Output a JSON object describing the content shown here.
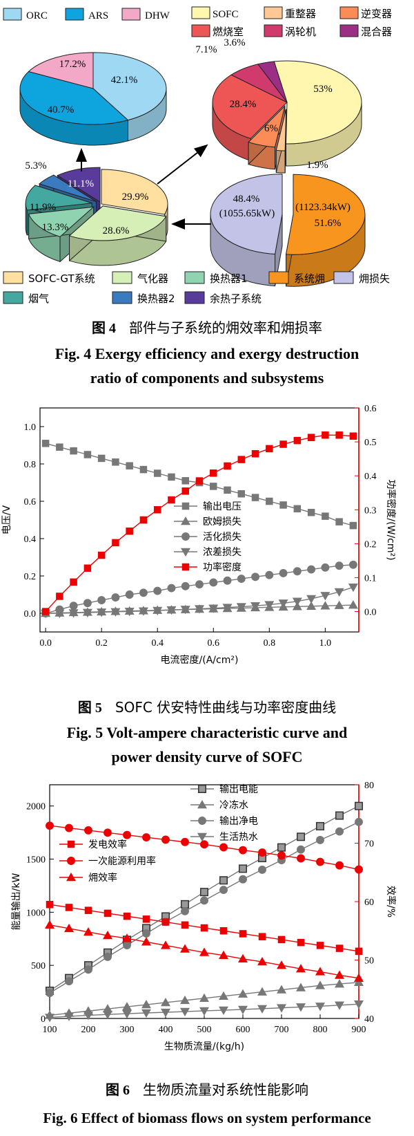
{
  "colors": {
    "ORC": "#9fd8f2",
    "ARS": "#0ea5de",
    "DHW": "#f2a8c6",
    "SOFC": "#fff6b0",
    "reformer": "#ffc895",
    "inverter": "#fb8c57",
    "combustor": "#ee5656",
    "turbine": "#d03a6c",
    "mixer": "#9b2f86",
    "sofcgt": "#ffe0a0",
    "gasifier": "#d6efb6",
    "hx1": "#8fd3b0",
    "exergy": "#f7951e",
    "loss": "#c3c3e7",
    "flue": "#44a8a0",
    "hx2": "#3a7bc0",
    "whr": "#583b9a",
    "gray": "#777777",
    "red": "#ee0000"
  },
  "fig4": {
    "legend_top_left": [
      "ORC",
      "ARS",
      "DHW"
    ],
    "legend_top_right": [
      "SOFC",
      "重整器",
      "逆变器",
      "燃烧室",
      "涡轮机",
      "混合器"
    ],
    "legend_bottom": [
      "SOFC-GT系统",
      "气化器",
      "换热器1",
      "系统㶲",
      "㶲损失",
      "烟气",
      "换热器2",
      "余热子系统"
    ],
    "pie_top_left": [
      {
        "name": "ORC",
        "label": "42.1%",
        "value": 42.1
      },
      {
        "name": "ARS",
        "label": "40.7%",
        "value": 40.7
      },
      {
        "name": "DHW",
        "label": "17.2%",
        "value": 17.2
      }
    ],
    "pie_top_right": [
      {
        "name": "SOFC",
        "label": "53%",
        "value": 53
      },
      {
        "name": "重整器",
        "label": "1.9%",
        "value": 1.9
      },
      {
        "name": "逆变器",
        "label": "6%",
        "value": 6
      },
      {
        "name": "燃烧室",
        "label": "28.4%",
        "value": 28.4
      },
      {
        "name": "涡轮机",
        "label": "7.1%",
        "value": 7.1
      },
      {
        "name": "混合器",
        "label": "3.6%",
        "value": 3.6
      }
    ],
    "pie_bottom_left": [
      {
        "name": "SOFC-GT系统",
        "label": "29.9%",
        "value": 29.9
      },
      {
        "name": "气化器",
        "label": "28.6%",
        "value": 28.6
      },
      {
        "name": "换热器1",
        "label": "13.3%",
        "value": 13.3
      },
      {
        "name": "烟气",
        "label": "11.9%",
        "value": 11.9
      },
      {
        "name": "换热器2",
        "label": "5.3%",
        "value": 5.3
      },
      {
        "name": "余热子系统",
        "label": "11.1%",
        "value": 11.1
      }
    ],
    "pie_bottom_right": [
      {
        "name": "系统㶲",
        "label_line1": "(1123.34kW)",
        "label_line2": "51.6%",
        "value": 51.6
      },
      {
        "name": "㶲损失",
        "label_line1": "48.4%",
        "label_line2": "(1055.65kW)",
        "value": 48.4
      }
    ],
    "caption_cn_num": "图 4",
    "caption_cn_text": "部件与子系统的㶲效率和㶲损率",
    "caption_en_line1": "Fig. 4    Exergy efficiency and exergy destruction",
    "caption_en_line2": "ratio of components and subsystems"
  },
  "chart_data": [
    {
      "type": "line",
      "xlabel": "电流密度/(A/cm²)",
      "ylabel": "电压/V",
      "y2label": "功率密度/(W/cm²)",
      "xlim": [
        -0.02,
        1.12
      ],
      "ylim": [
        -0.1,
        1.1
      ],
      "y2lim": [
        -0.06,
        0.6
      ],
      "xticks": [
        "0.0",
        "0.2",
        "0.4",
        "0.6",
        "0.8",
        "1.0"
      ],
      "yticks": [
        "0.0",
        "0.2",
        "0.4",
        "0.6",
        "0.8",
        "1.0"
      ],
      "y2ticks": [
        "0.0",
        "0.1",
        "0.2",
        "0.3",
        "0.4",
        "0.5",
        "0.6"
      ],
      "legend_position": "center",
      "x": [
        0,
        0.05,
        0.1,
        0.15,
        0.2,
        0.25,
        0.3,
        0.35,
        0.4,
        0.45,
        0.5,
        0.55,
        0.6,
        0.65,
        0.7,
        0.75,
        0.8,
        0.85,
        0.9,
        0.95,
        1.0,
        1.05,
        1.1
      ],
      "series": [
        {
          "name": "输出电压",
          "axis": "left",
          "marker": "square",
          "color": "#777777",
          "values": [
            0.91,
            0.89,
            0.87,
            0.85,
            0.83,
            0.81,
            0.79,
            0.77,
            0.75,
            0.73,
            0.71,
            0.7,
            0.68,
            0.66,
            0.64,
            0.62,
            0.6,
            0.58,
            0.56,
            0.54,
            0.52,
            0.49,
            0.47
          ]
        },
        {
          "name": "欧姆损失",
          "axis": "left",
          "marker": "triangle-up",
          "color": "#777777",
          "values": [
            0.0,
            0.002,
            0.004,
            0.006,
            0.008,
            0.01,
            0.012,
            0.014,
            0.016,
            0.018,
            0.02,
            0.022,
            0.024,
            0.026,
            0.028,
            0.03,
            0.032,
            0.034,
            0.036,
            0.038,
            0.04,
            0.042,
            0.044
          ]
        },
        {
          "name": "活化损失",
          "axis": "left",
          "marker": "circle",
          "color": "#777777",
          "values": [
            0.0,
            0.02,
            0.04,
            0.055,
            0.07,
            0.085,
            0.1,
            0.11,
            0.12,
            0.135,
            0.145,
            0.155,
            0.165,
            0.175,
            0.185,
            0.195,
            0.205,
            0.215,
            0.225,
            0.235,
            0.245,
            0.255,
            0.26
          ]
        },
        {
          "name": "浓差损失",
          "axis": "left",
          "marker": "triangle-down",
          "color": "#777777",
          "values": [
            0.0,
            0.0,
            0.002,
            0.004,
            0.006,
            0.008,
            0.01,
            0.012,
            0.015,
            0.018,
            0.021,
            0.024,
            0.027,
            0.031,
            0.035,
            0.04,
            0.046,
            0.054,
            0.064,
            0.078,
            0.095,
            0.115,
            0.14
          ]
        },
        {
          "name": "功率密度",
          "axis": "right",
          "marker": "square",
          "color": "#ee0000",
          "values": [
            0.0,
            0.045,
            0.087,
            0.128,
            0.166,
            0.203,
            0.237,
            0.27,
            0.3,
            0.329,
            0.355,
            0.385,
            0.408,
            0.429,
            0.448,
            0.465,
            0.48,
            0.493,
            0.504,
            0.513,
            0.52,
            0.52,
            0.517
          ]
        }
      ],
      "caption_cn_num": "图 5",
      "caption_cn_text": "SOFC 伏安特性曲线与功率密度曲线",
      "caption_en_line1": "Fig. 5    Volt-ampere characteristic curve and",
      "caption_en_line2": "power density curve of SOFC"
    },
    {
      "type": "line",
      "xlabel": "生物质流量/(kg/h)",
      "ylabel": "能量输出/kW",
      "y2label": "效率/%",
      "xlim": [
        100,
        900
      ],
      "ylim": [
        0,
        2200
      ],
      "y2lim": [
        40,
        80
      ],
      "xticks": [
        "100",
        "200",
        "300",
        "400",
        "500",
        "600",
        "700",
        "800",
        "900"
      ],
      "yticks": [
        "0",
        "500",
        "1000",
        "1500",
        "2000"
      ],
      "y2ticks": [
        "40",
        "50",
        "60",
        "70",
        "80"
      ],
      "legend_position": "top-center and left",
      "x": [
        100,
        150,
        200,
        250,
        300,
        350,
        400,
        450,
        500,
        550,
        600,
        650,
        700,
        750,
        800,
        850,
        900
      ],
      "series": [
        {
          "name": "输出电能",
          "axis": "left",
          "marker": "square-open",
          "color": "#777777",
          "values": [
            260,
            380,
            500,
            620,
            740,
            850,
            960,
            1075,
            1190,
            1300,
            1410,
            1510,
            1610,
            1710,
            1810,
            1910,
            2000
          ]
        },
        {
          "name": "冷冻水",
          "axis": "left",
          "marker": "triangle-up",
          "color": "#777777",
          "values": [
            30,
            50,
            70,
            90,
            110,
            130,
            150,
            170,
            190,
            210,
            230,
            250,
            270,
            290,
            310,
            325,
            340
          ]
        },
        {
          "name": "输出净电",
          "axis": "left",
          "marker": "circle",
          "color": "#777777",
          "values": [
            240,
            350,
            460,
            580,
            690,
            800,
            910,
            1010,
            1110,
            1210,
            1310,
            1400,
            1490,
            1590,
            1680,
            1760,
            1850
          ]
        },
        {
          "name": "生活热水",
          "axis": "left",
          "marker": "triangle-down",
          "color": "#777777",
          "values": [
            10,
            20,
            30,
            38,
            45,
            52,
            58,
            65,
            72,
            78,
            85,
            92,
            100,
            108,
            115,
            125,
            135
          ]
        },
        {
          "name": "发电效率",
          "axis": "right",
          "marker": "square",
          "color": "#ee0000",
          "values": [
            59.5,
            59.0,
            58.5,
            58.0,
            57.5,
            57.0,
            56.5,
            56.0,
            55.5,
            55.0,
            54.5,
            54.0,
            53.5,
            53.0,
            52.5,
            52.0,
            51.5
          ]
        },
        {
          "name": "一次能源利用率",
          "axis": "right",
          "marker": "circle",
          "color": "#ee0000",
          "values": [
            73.0,
            72.6,
            72.2,
            71.8,
            71.4,
            71.0,
            70.6,
            70.2,
            69.8,
            69.3,
            68.8,
            68.4,
            67.9,
            67.4,
            66.8,
            66.2,
            65.5
          ]
        },
        {
          "name": "㶲效率",
          "axis": "right",
          "marker": "triangle-up",
          "color": "#ee0000",
          "values": [
            56.0,
            55.4,
            54.8,
            54.2,
            53.7,
            53.1,
            52.5,
            51.9,
            51.3,
            50.8,
            50.2,
            49.7,
            49.1,
            48.5,
            48.0,
            47.4,
            46.9
          ]
        }
      ],
      "caption_cn_num": "图 6",
      "caption_cn_text": "生物质流量对系统性能影响",
      "caption_en_line1": "Fig. 6    Effect of biomass flows on system performance"
    }
  ]
}
